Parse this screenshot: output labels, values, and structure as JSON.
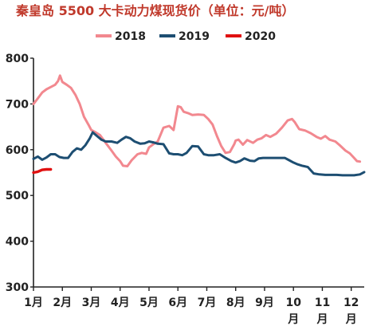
{
  "chart_data": {
    "type": "line",
    "title": "秦皇岛 5500 大卡动力煤现货价（单位：元/吨）",
    "xlabel": "",
    "ylabel": "",
    "ylim": [
      300,
      800
    ],
    "yticks": [
      300,
      400,
      500,
      600,
      700,
      800
    ],
    "x_domain": [
      1,
      12.45
    ],
    "categories": [
      "1月",
      "2月",
      "3月",
      "4月",
      "5月",
      "6月",
      "7月",
      "8月",
      "9月",
      "10\n月",
      "11\n月",
      "12\n月"
    ],
    "legend_position": "top",
    "grid": false,
    "series": [
      {
        "name": "2018",
        "color": "#f2888f",
        "x": [
          1.0,
          1.15,
          1.3,
          1.45,
          1.6,
          1.75,
          1.85,
          1.92,
          2.0,
          2.15,
          2.3,
          2.45,
          2.6,
          2.75,
          2.9,
          3.0,
          3.15,
          3.3,
          3.5,
          3.7,
          3.85,
          4.0,
          4.1,
          4.25,
          4.4,
          4.6,
          4.75,
          4.9,
          5.0,
          5.15,
          5.3,
          5.5,
          5.7,
          5.85,
          6.0,
          6.1,
          6.2,
          6.35,
          6.5,
          6.7,
          6.9,
          7.05,
          7.2,
          7.35,
          7.5,
          7.65,
          7.8,
          7.95,
          8.0,
          8.1,
          8.25,
          8.4,
          8.6,
          8.75,
          8.9,
          9.05,
          9.2,
          9.4,
          9.6,
          9.8,
          9.95,
          10.05,
          10.2,
          10.4,
          10.6,
          10.8,
          10.95,
          11.1,
          11.25,
          11.45,
          11.6,
          11.8,
          11.95,
          12.1,
          12.2,
          12.3
        ],
        "values": [
          700,
          712,
          725,
          732,
          737,
          742,
          750,
          762,
          748,
          742,
          735,
          720,
          700,
          672,
          655,
          643,
          638,
          632,
          615,
          598,
          585,
          575,
          565,
          564,
          577,
          590,
          593,
          591,
          605,
          612,
          618,
          648,
          652,
          643,
          695,
          693,
          683,
          680,
          676,
          677,
          676,
          667,
          655,
          630,
          608,
          593,
          595,
          612,
          620,
          622,
          611,
          621,
          615,
          622,
          625,
          632,
          628,
          635,
          648,
          664,
          667,
          660,
          645,
          642,
          636,
          628,
          624,
          630,
          622,
          618,
          610,
          598,
          592,
          582,
          575,
          574
        ]
      },
      {
        "name": "2019",
        "color": "#1d4e72",
        "x": [
          1.0,
          1.15,
          1.3,
          1.45,
          1.6,
          1.75,
          1.9,
          2.05,
          2.2,
          2.35,
          2.5,
          2.65,
          2.8,
          2.95,
          3.05,
          3.2,
          3.35,
          3.5,
          3.7,
          3.9,
          4.05,
          4.2,
          4.35,
          4.5,
          4.7,
          4.85,
          5.0,
          5.15,
          5.3,
          5.5,
          5.7,
          5.85,
          6.0,
          6.15,
          6.3,
          6.5,
          6.7,
          6.9,
          7.05,
          7.25,
          7.45,
          7.65,
          7.85,
          8.0,
          8.15,
          8.3,
          8.5,
          8.65,
          8.8,
          8.95,
          9.1,
          9.3,
          9.5,
          9.7,
          9.85,
          10.0,
          10.15,
          10.3,
          10.5,
          10.7,
          10.9,
          11.1,
          11.3,
          11.5,
          11.7,
          11.9,
          12.1,
          12.3,
          12.45
        ],
        "values": [
          580,
          585,
          578,
          583,
          590,
          590,
          584,
          582,
          582,
          595,
          603,
          600,
          610,
          625,
          638,
          630,
          622,
          618,
          618,
          615,
          622,
          628,
          625,
          618,
          613,
          614,
          618,
          616,
          613,
          612,
          592,
          590,
          590,
          588,
          593,
          608,
          607,
          590,
          588,
          588,
          590,
          582,
          575,
          572,
          575,
          581,
          576,
          575,
          581,
          582,
          582,
          582,
          582,
          582,
          577,
          572,
          568,
          565,
          562,
          548,
          546,
          545,
          545,
          545,
          544,
          544,
          544,
          546,
          551
        ]
      },
      {
        "name": "2020",
        "color": "#e01010",
        "x": [
          1.0,
          1.15,
          1.3,
          1.45,
          1.6
        ],
        "values": [
          550,
          552,
          556,
          557,
          557
        ]
      }
    ]
  }
}
